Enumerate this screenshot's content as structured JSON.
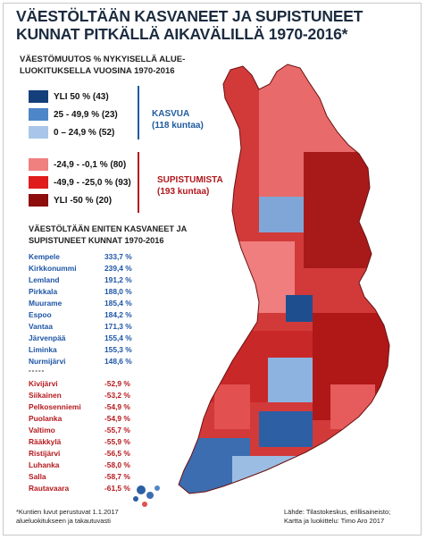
{
  "title": {
    "line1": "VÄESTÖLTÄÄN KASVANEET JA SUPISTUNEET",
    "line2": "KUNNAT PITKÄLLÄ AIKAVÄLILLÄ 1970-2016*"
  },
  "subtitle": {
    "line1": "VÄESTÖMUUTOS % NYKYISELLÄ ALUE-",
    "line2": "LUOKITUKSELLA VUOSINA 1970-2016"
  },
  "legend": {
    "items": [
      {
        "label": "YLI 50 % (43)",
        "color": "#153f7a"
      },
      {
        "label": "25 - 49,9 % (23)",
        "color": "#4e86c8"
      },
      {
        "label": "0 – 24,9 % (52)",
        "color": "#a9c6e8"
      },
      {
        "label": "-24,9 - -0,1 % (80)",
        "color": "#f08080"
      },
      {
        "label": "-49,9 - -25,0 % (93)",
        "color": "#e01b1b"
      },
      {
        "label": "YLI -50 % (20)",
        "color": "#8e0d0d"
      }
    ],
    "growth_label": "KASVUA",
    "growth_count": "(118 kuntaa)",
    "decline_label": "SUPISTUMISTA",
    "decline_count": "(193 kuntaa)"
  },
  "table": {
    "title_line1": "VÄESTÖLTÄÄN ENITEN KASVANEET JA",
    "title_line2": "SUPISTUNEET KUNNAT 1970-2016",
    "growth": [
      {
        "name": "Kempele",
        "value": "333,7 %"
      },
      {
        "name": "Kirkkonummi",
        "value": "239,4 %"
      },
      {
        "name": "Lemland",
        "value": "191,2 %"
      },
      {
        "name": "Pirkkala",
        "value": "188,0 %"
      },
      {
        "name": "Muurame",
        "value": "185,4 %"
      },
      {
        "name": "Espoo",
        "value": "184,2 %"
      },
      {
        "name": "Vantaa",
        "value": "171,3 %"
      },
      {
        "name": "Järvenpää",
        "value": "155,4 %"
      },
      {
        "name": "Liminka",
        "value": "155,3 %"
      },
      {
        "name": "Nurmijärvi",
        "value": "148,6 %"
      }
    ],
    "separator": "-----",
    "decline": [
      {
        "name": "Kivijärvi",
        "value": "-52,9 %"
      },
      {
        "name": "Siikainen",
        "value": "-53,2 %"
      },
      {
        "name": "Pelkosenniemi",
        "value": "-54,9 %"
      },
      {
        "name": "Puolanka",
        "value": "-54,9 %"
      },
      {
        "name": "Valtimo",
        "value": "-55,7 %"
      },
      {
        "name": "Rääkkylä",
        "value": "-55,9 %"
      },
      {
        "name": "Ristijärvi",
        "value": "-56,5 %"
      },
      {
        "name": "Luhanka",
        "value": "-58,0 %"
      },
      {
        "name": "Salla",
        "value": "-58,7 %"
      },
      {
        "name": "Rautavaara",
        "value": "-61,5 %"
      }
    ]
  },
  "footnote": {
    "line1": "*Kuntien luvut perustuvat 1.1.2017",
    "line2": "alueluokitukseen ja takautuvasti"
  },
  "source": {
    "line1": "Lähde: Tilastokeskus, erillisaineisto;",
    "line2": "Kartta ja luokittelu: Timo Aro 2017"
  }
}
